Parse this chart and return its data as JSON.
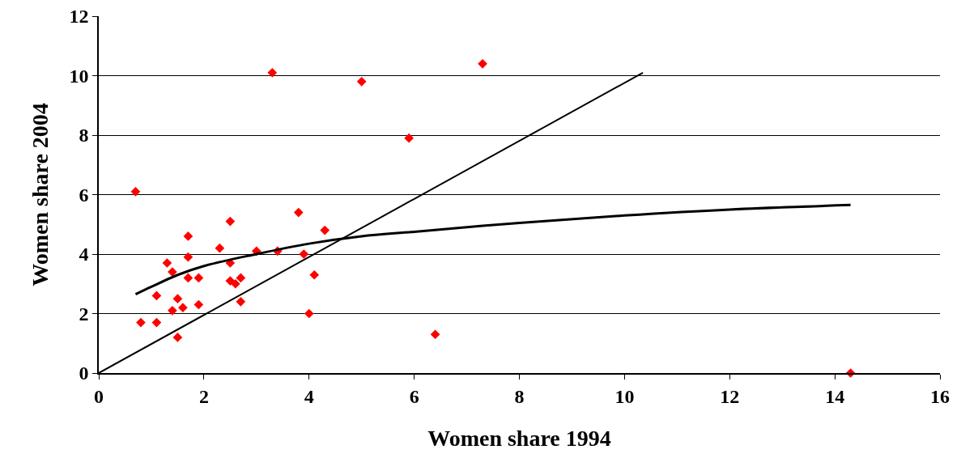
{
  "chart_data": {
    "type": "scatter",
    "xlabel": "Women share 1994",
    "ylabel": "Women share 2004",
    "xlim": [
      0,
      16
    ],
    "xticks": [
      0,
      2,
      4,
      6,
      8,
      10,
      12,
      14,
      16
    ],
    "ylim": [
      0,
      12
    ],
    "yticks": [
      0,
      2,
      4,
      6,
      8,
      10,
      12
    ],
    "grid": "y",
    "series": [
      {
        "marker": "diamond",
        "color": "#ff0000",
        "x": [
          0.7,
          0.8,
          1.1,
          1.1,
          1.3,
          1.4,
          1.4,
          1.5,
          1.5,
          1.6,
          1.7,
          1.7,
          1.7,
          1.9,
          1.9,
          2.3,
          2.5,
          2.5,
          2.5,
          2.6,
          2.7,
          2.7,
          3.0,
          3.3,
          3.4,
          3.8,
          3.9,
          4.0,
          4.1,
          4.3,
          5.0,
          5.9,
          6.4,
          7.3,
          14.3
        ],
        "values": [
          6.1,
          1.7,
          2.6,
          1.7,
          3.7,
          3.4,
          2.1,
          2.5,
          1.2,
          2.2,
          4.6,
          3.9,
          3.2,
          3.2,
          2.3,
          4.2,
          5.1,
          3.7,
          3.1,
          3.0,
          3.2,
          2.4,
          4.1,
          10.1,
          4.1,
          5.4,
          4.0,
          2.0,
          3.3,
          4.8,
          9.8,
          7.9,
          1.3,
          10.4,
          0.0
        ]
      },
      {
        "type": "line",
        "marker": "none",
        "line_style": "solid",
        "color": "#000000",
        "x": [
          0,
          10.35
        ],
        "values": [
          0,
          10.1
        ]
      },
      {
        "type": "line",
        "marker": "none",
        "line_style": "solid",
        "color": "#000000",
        "x": [
          0.7,
          1,
          1.5,
          2,
          3,
          4,
          5,
          6,
          8,
          10,
          12,
          14.3
        ],
        "values": [
          2.65,
          2.9,
          3.3,
          3.6,
          4.0,
          4.35,
          4.6,
          4.75,
          5.05,
          5.3,
          5.5,
          5.65
        ]
      }
    ]
  }
}
